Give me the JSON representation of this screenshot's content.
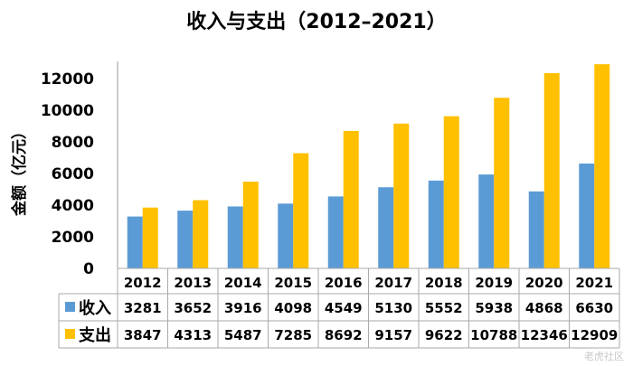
{
  "chart_data": {
    "type": "bar",
    "title": "收入与支出（2012–2021）",
    "ylabel": "金额（亿元）",
    "xlabel": "",
    "categories": [
      "2012",
      "2013",
      "2014",
      "2015",
      "2016",
      "2017",
      "2018",
      "2019",
      "2020",
      "2021"
    ],
    "series": [
      {
        "name": "收入",
        "color": "#5B9BD5",
        "values": [
          3281,
          3652,
          3916,
          4098,
          4549,
          5130,
          5552,
          5938,
          4868,
          6630
        ]
      },
      {
        "name": "支出",
        "color": "#FFC000",
        "values": [
          3847,
          4313,
          5487,
          7285,
          8692,
          9157,
          9622,
          10788,
          12346,
          12909
        ]
      }
    ],
    "ylim": [
      0,
      13000
    ],
    "yticks": [
      0,
      2000,
      4000,
      6000,
      8000,
      10000,
      12000
    ],
    "legend": "data-table",
    "grid": false
  },
  "watermark": "老虎社区"
}
